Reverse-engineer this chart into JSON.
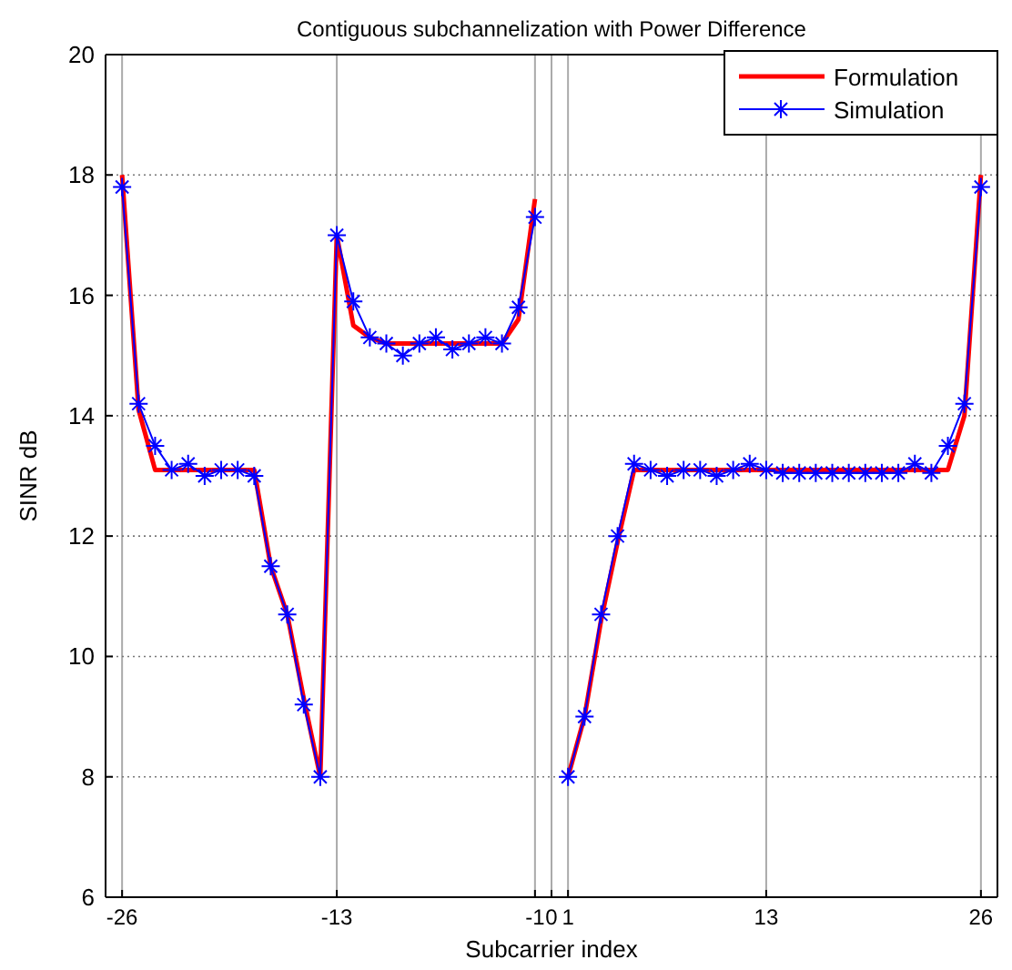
{
  "chart_data": {
    "type": "line",
    "title": "Contiguous subchannelization with Power Difference",
    "xlabel": "Subcarrier index",
    "ylabel": "SINR dB",
    "x": [
      -26,
      -25,
      -24,
      -23,
      -22,
      -21,
      -20,
      -19,
      -18,
      -17,
      -16,
      -15,
      -14,
      -13,
      -12,
      -11,
      -10,
      -9,
      -8,
      -7,
      -6,
      -5,
      -4,
      -3,
      -2,
      -1,
      0,
      1,
      2,
      3,
      4,
      5,
      6,
      7,
      8,
      9,
      10,
      11,
      12,
      13,
      14,
      15,
      16,
      17,
      18,
      19,
      20,
      21,
      22,
      23,
      24,
      25,
      26
    ],
    "series": [
      {
        "name": "Formulation",
        "color": "#ff0000",
        "marker": "none",
        "values": [
          18.0,
          14.1,
          13.1,
          13.1,
          13.1,
          13.1,
          13.1,
          13.1,
          13.1,
          11.5,
          10.7,
          9.3,
          8.0,
          17.0,
          15.5,
          15.3,
          15.2,
          15.2,
          15.2,
          15.2,
          15.2,
          15.2,
          15.2,
          15.2,
          15.6,
          17.6,
          null,
          8.0,
          9.0,
          10.6,
          11.9,
          13.1,
          13.1,
          13.1,
          13.1,
          13.1,
          13.1,
          13.1,
          13.1,
          13.1,
          13.1,
          13.1,
          13.1,
          13.1,
          13.1,
          13.1,
          13.1,
          13.1,
          13.1,
          13.1,
          13.1,
          14.0,
          18.0
        ]
      },
      {
        "name": "Simulation",
        "color": "#0000ff",
        "marker": "cross",
        "values": [
          17.8,
          14.2,
          13.5,
          13.1,
          13.2,
          13.0,
          13.1,
          13.1,
          13.0,
          11.5,
          10.7,
          9.2,
          8.0,
          17.0,
          15.9,
          15.3,
          15.2,
          15.0,
          15.2,
          15.3,
          15.1,
          15.2,
          15.3,
          15.2,
          15.8,
          17.3,
          null,
          8.0,
          9.0,
          10.7,
          12.0,
          13.2,
          13.1,
          13.0,
          13.1,
          13.1,
          13.0,
          13.1,
          13.2,
          13.1,
          13.05,
          13.05,
          13.05,
          13.05,
          13.05,
          13.05,
          13.05,
          13.05,
          13.2,
          13.05,
          13.5,
          14.2,
          17.8
        ]
      }
    ],
    "xlim": [
      -27,
      27
    ],
    "xticks": [
      -26,
      -13,
      -1,
      0,
      1,
      13,
      26
    ],
    "ylim": [
      6,
      20
    ],
    "yticks": [
      6,
      8,
      10,
      12,
      14,
      16,
      18,
      20
    ],
    "grid": true,
    "legend": "top right",
    "line_style": "solid"
  }
}
